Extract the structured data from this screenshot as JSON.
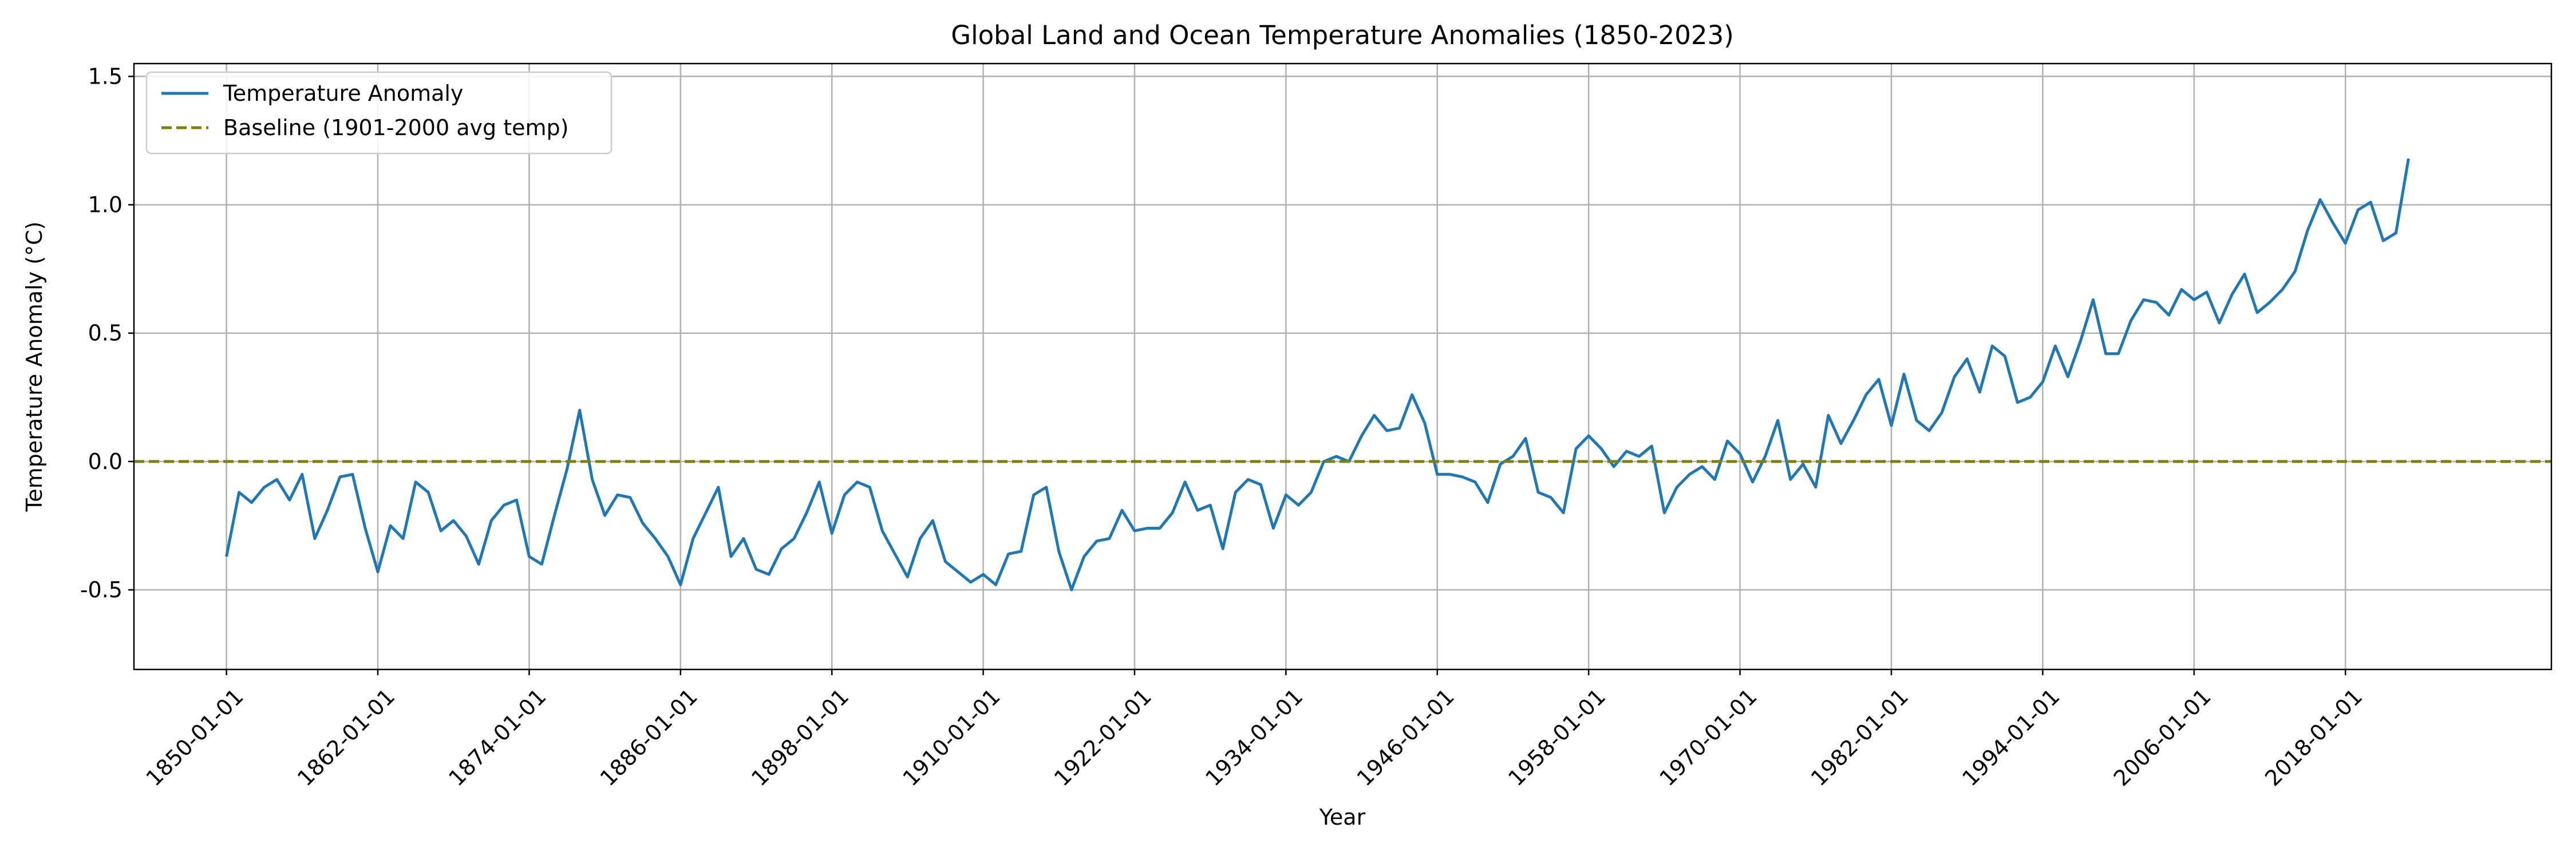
{
  "chart_data": {
    "type": "line",
    "title": "Global Land and Ocean Temperature Anomalies (1850-2023)",
    "xlabel": "Year",
    "ylabel": "Temperature Anomaly (°C)",
    "xlim": [
      "1842-09-01",
      "2034-05-01"
    ],
    "ylim": [
      -0.81,
      1.55
    ],
    "x_ticks": [
      "1850-01-01",
      "1862-01-01",
      "1874-01-01",
      "1886-01-01",
      "1898-01-01",
      "1910-01-01",
      "1922-01-01",
      "1934-01-01",
      "1946-01-01",
      "1958-01-01",
      "1970-01-01",
      "1982-01-01",
      "1994-01-01",
      "2006-01-01",
      "2018-01-01"
    ],
    "y_ticks": [
      "-0.5",
      "0.0",
      "0.5",
      "1.0",
      "1.5"
    ],
    "grid": true,
    "legend_position": "top-left",
    "series": [
      {
        "name": "Temperature Anomaly",
        "color": "#1f77b4",
        "style": "solid",
        "points": [
          [
            "1850-01-01",
            -0.37
          ],
          [
            "1851-01-01",
            -0.12
          ],
          [
            "1852-01-01",
            -0.16
          ],
          [
            "1853-01-01",
            -0.1
          ],
          [
            "1854-01-01",
            -0.07
          ],
          [
            "1855-01-01",
            -0.15
          ],
          [
            "1856-01-01",
            -0.05
          ],
          [
            "1857-01-01",
            -0.3
          ],
          [
            "1858-01-01",
            -0.19
          ],
          [
            "1859-01-01",
            -0.06
          ],
          [
            "1860-01-01",
            -0.05
          ],
          [
            "1861-01-01",
            -0.26
          ],
          [
            "1862-01-01",
            -0.43
          ],
          [
            "1863-01-01",
            -0.25
          ],
          [
            "1864-01-01",
            -0.3
          ],
          [
            "1865-01-01",
            -0.08
          ],
          [
            "1866-01-01",
            -0.12
          ],
          [
            "1867-01-01",
            -0.27
          ],
          [
            "1868-01-01",
            -0.23
          ],
          [
            "1869-01-01",
            -0.29
          ],
          [
            "1870-01-01",
            -0.4
          ],
          [
            "1871-01-01",
            -0.23
          ],
          [
            "1872-01-01",
            -0.17
          ],
          [
            "1873-01-01",
            -0.15
          ],
          [
            "1874-01-01",
            -0.37
          ],
          [
            "1875-01-01",
            -0.4
          ],
          [
            "1876-01-01",
            -0.21
          ],
          [
            "1877-01-01",
            -0.03
          ],
          [
            "1878-01-01",
            0.2
          ],
          [
            "1879-01-01",
            -0.07
          ],
          [
            "1880-01-01",
            -0.21
          ],
          [
            "1881-01-01",
            -0.13
          ],
          [
            "1882-01-01",
            -0.14
          ],
          [
            "1883-01-01",
            -0.24
          ],
          [
            "1884-01-01",
            -0.3
          ],
          [
            "1885-01-01",
            -0.37
          ],
          [
            "1886-01-01",
            -0.48
          ],
          [
            "1887-01-01",
            -0.3
          ],
          [
            "1888-01-01",
            -0.2
          ],
          [
            "1889-01-01",
            -0.1
          ],
          [
            "1890-01-01",
            -0.37
          ],
          [
            "1891-01-01",
            -0.3
          ],
          [
            "1892-01-01",
            -0.42
          ],
          [
            "1893-01-01",
            -0.44
          ],
          [
            "1894-01-01",
            -0.34
          ],
          [
            "1895-01-01",
            -0.3
          ],
          [
            "1896-01-01",
            -0.2
          ],
          [
            "1897-01-01",
            -0.08
          ],
          [
            "1898-01-01",
            -0.28
          ],
          [
            "1899-01-01",
            -0.13
          ],
          [
            "1900-01-01",
            -0.08
          ],
          [
            "1901-01-01",
            -0.1
          ],
          [
            "1902-01-01",
            -0.27
          ],
          [
            "1903-01-01",
            -0.36
          ],
          [
            "1904-01-01",
            -0.45
          ],
          [
            "1905-01-01",
            -0.3
          ],
          [
            "1906-01-01",
            -0.23
          ],
          [
            "1907-01-01",
            -0.39
          ],
          [
            "1908-01-01",
            -0.43
          ],
          [
            "1909-01-01",
            -0.47
          ],
          [
            "1910-01-01",
            -0.44
          ],
          [
            "1911-01-01",
            -0.48
          ],
          [
            "1912-01-01",
            -0.36
          ],
          [
            "1913-01-01",
            -0.35
          ],
          [
            "1914-01-01",
            -0.13
          ],
          [
            "1915-01-01",
            -0.1
          ],
          [
            "1916-01-01",
            -0.35
          ],
          [
            "1917-01-01",
            -0.5
          ],
          [
            "1918-01-01",
            -0.37
          ],
          [
            "1919-01-01",
            -0.31
          ],
          [
            "1920-01-01",
            -0.3
          ],
          [
            "1921-01-01",
            -0.19
          ],
          [
            "1922-01-01",
            -0.27
          ],
          [
            "1923-01-01",
            -0.26
          ],
          [
            "1924-01-01",
            -0.26
          ],
          [
            "1925-01-01",
            -0.2
          ],
          [
            "1926-01-01",
            -0.08
          ],
          [
            "1927-01-01",
            -0.19
          ],
          [
            "1928-01-01",
            -0.17
          ],
          [
            "1929-01-01",
            -0.34
          ],
          [
            "1930-01-01",
            -0.12
          ],
          [
            "1931-01-01",
            -0.07
          ],
          [
            "1932-01-01",
            -0.09
          ],
          [
            "1933-01-01",
            -0.26
          ],
          [
            "1934-01-01",
            -0.13
          ],
          [
            "1935-01-01",
            -0.17
          ],
          [
            "1936-01-01",
            -0.12
          ],
          [
            "1937-01-01",
            0.0
          ],
          [
            "1938-01-01",
            0.02
          ],
          [
            "1939-01-01",
            0.0
          ],
          [
            "1940-01-01",
            0.1
          ],
          [
            "1941-01-01",
            0.18
          ],
          [
            "1942-01-01",
            0.12
          ],
          [
            "1943-01-01",
            0.13
          ],
          [
            "1944-01-01",
            0.26
          ],
          [
            "1945-01-01",
            0.15
          ],
          [
            "1946-01-01",
            -0.05
          ],
          [
            "1947-01-01",
            -0.05
          ],
          [
            "1948-01-01",
            -0.06
          ],
          [
            "1949-01-01",
            -0.08
          ],
          [
            "1950-01-01",
            -0.16
          ],
          [
            "1951-01-01",
            -0.01
          ],
          [
            "1952-01-01",
            0.02
          ],
          [
            "1953-01-01",
            0.09
          ],
          [
            "1954-01-01",
            -0.12
          ],
          [
            "1955-01-01",
            -0.14
          ],
          [
            "1956-01-01",
            -0.2
          ],
          [
            "1957-01-01",
            0.05
          ],
          [
            "1958-01-01",
            0.1
          ],
          [
            "1959-01-01",
            0.05
          ],
          [
            "1960-01-01",
            -0.02
          ],
          [
            "1961-01-01",
            0.04
          ],
          [
            "1962-01-01",
            0.02
          ],
          [
            "1963-01-01",
            0.06
          ],
          [
            "1964-01-01",
            -0.2
          ],
          [
            "1965-01-01",
            -0.1
          ],
          [
            "1966-01-01",
            -0.05
          ],
          [
            "1967-01-01",
            -0.02
          ],
          [
            "1968-01-01",
            -0.07
          ],
          [
            "1969-01-01",
            0.08
          ],
          [
            "1970-01-01",
            0.03
          ],
          [
            "1971-01-01",
            -0.08
          ],
          [
            "1972-01-01",
            0.02
          ],
          [
            "1973-01-01",
            0.16
          ],
          [
            "1974-01-01",
            -0.07
          ],
          [
            "1975-01-01",
            -0.01
          ],
          [
            "1976-01-01",
            -0.1
          ],
          [
            "1977-01-01",
            0.18
          ],
          [
            "1978-01-01",
            0.07
          ],
          [
            "1979-01-01",
            0.16
          ],
          [
            "1980-01-01",
            0.26
          ],
          [
            "1981-01-01",
            0.32
          ],
          [
            "1982-01-01",
            0.14
          ],
          [
            "1983-01-01",
            0.34
          ],
          [
            "1984-01-01",
            0.16
          ],
          [
            "1985-01-01",
            0.12
          ],
          [
            "1986-01-01",
            0.19
          ],
          [
            "1987-01-01",
            0.33
          ],
          [
            "1988-01-01",
            0.4
          ],
          [
            "1989-01-01",
            0.27
          ],
          [
            "1990-01-01",
            0.45
          ],
          [
            "1991-01-01",
            0.41
          ],
          [
            "1992-01-01",
            0.23
          ],
          [
            "1993-01-01",
            0.25
          ],
          [
            "1994-01-01",
            0.31
          ],
          [
            "1995-01-01",
            0.45
          ],
          [
            "1996-01-01",
            0.33
          ],
          [
            "1997-01-01",
            0.47
          ],
          [
            "1998-01-01",
            0.63
          ],
          [
            "1999-01-01",
            0.42
          ],
          [
            "2000-01-01",
            0.42
          ],
          [
            "2001-01-01",
            0.55
          ],
          [
            "2002-01-01",
            0.63
          ],
          [
            "2003-01-01",
            0.62
          ],
          [
            "2004-01-01",
            0.57
          ],
          [
            "2005-01-01",
            0.67
          ],
          [
            "2006-01-01",
            0.63
          ],
          [
            "2007-01-01",
            0.66
          ],
          [
            "2008-01-01",
            0.54
          ],
          [
            "2009-01-01",
            0.65
          ],
          [
            "2010-01-01",
            0.73
          ],
          [
            "2011-01-01",
            0.58
          ],
          [
            "2012-01-01",
            0.62
          ],
          [
            "2013-01-01",
            0.67
          ],
          [
            "2014-01-01",
            0.74
          ],
          [
            "2015-01-01",
            0.9
          ],
          [
            "2016-01-01",
            1.02
          ],
          [
            "2017-01-01",
            0.93
          ],
          [
            "2018-01-01",
            0.85
          ],
          [
            "2019-01-01",
            0.98
          ],
          [
            "2020-01-01",
            1.01
          ],
          [
            "2021-01-01",
            0.86
          ],
          [
            "2022-01-01",
            0.89
          ],
          [
            "2023-01-01",
            1.18
          ]
        ]
      },
      {
        "name": "Baseline (1901-2000 avg temp)",
        "color": "#808000",
        "style": "dashed",
        "points": [
          [
            "1842-09-01",
            0.0
          ],
          [
            "2034-05-01",
            0.0
          ]
        ]
      }
    ]
  }
}
